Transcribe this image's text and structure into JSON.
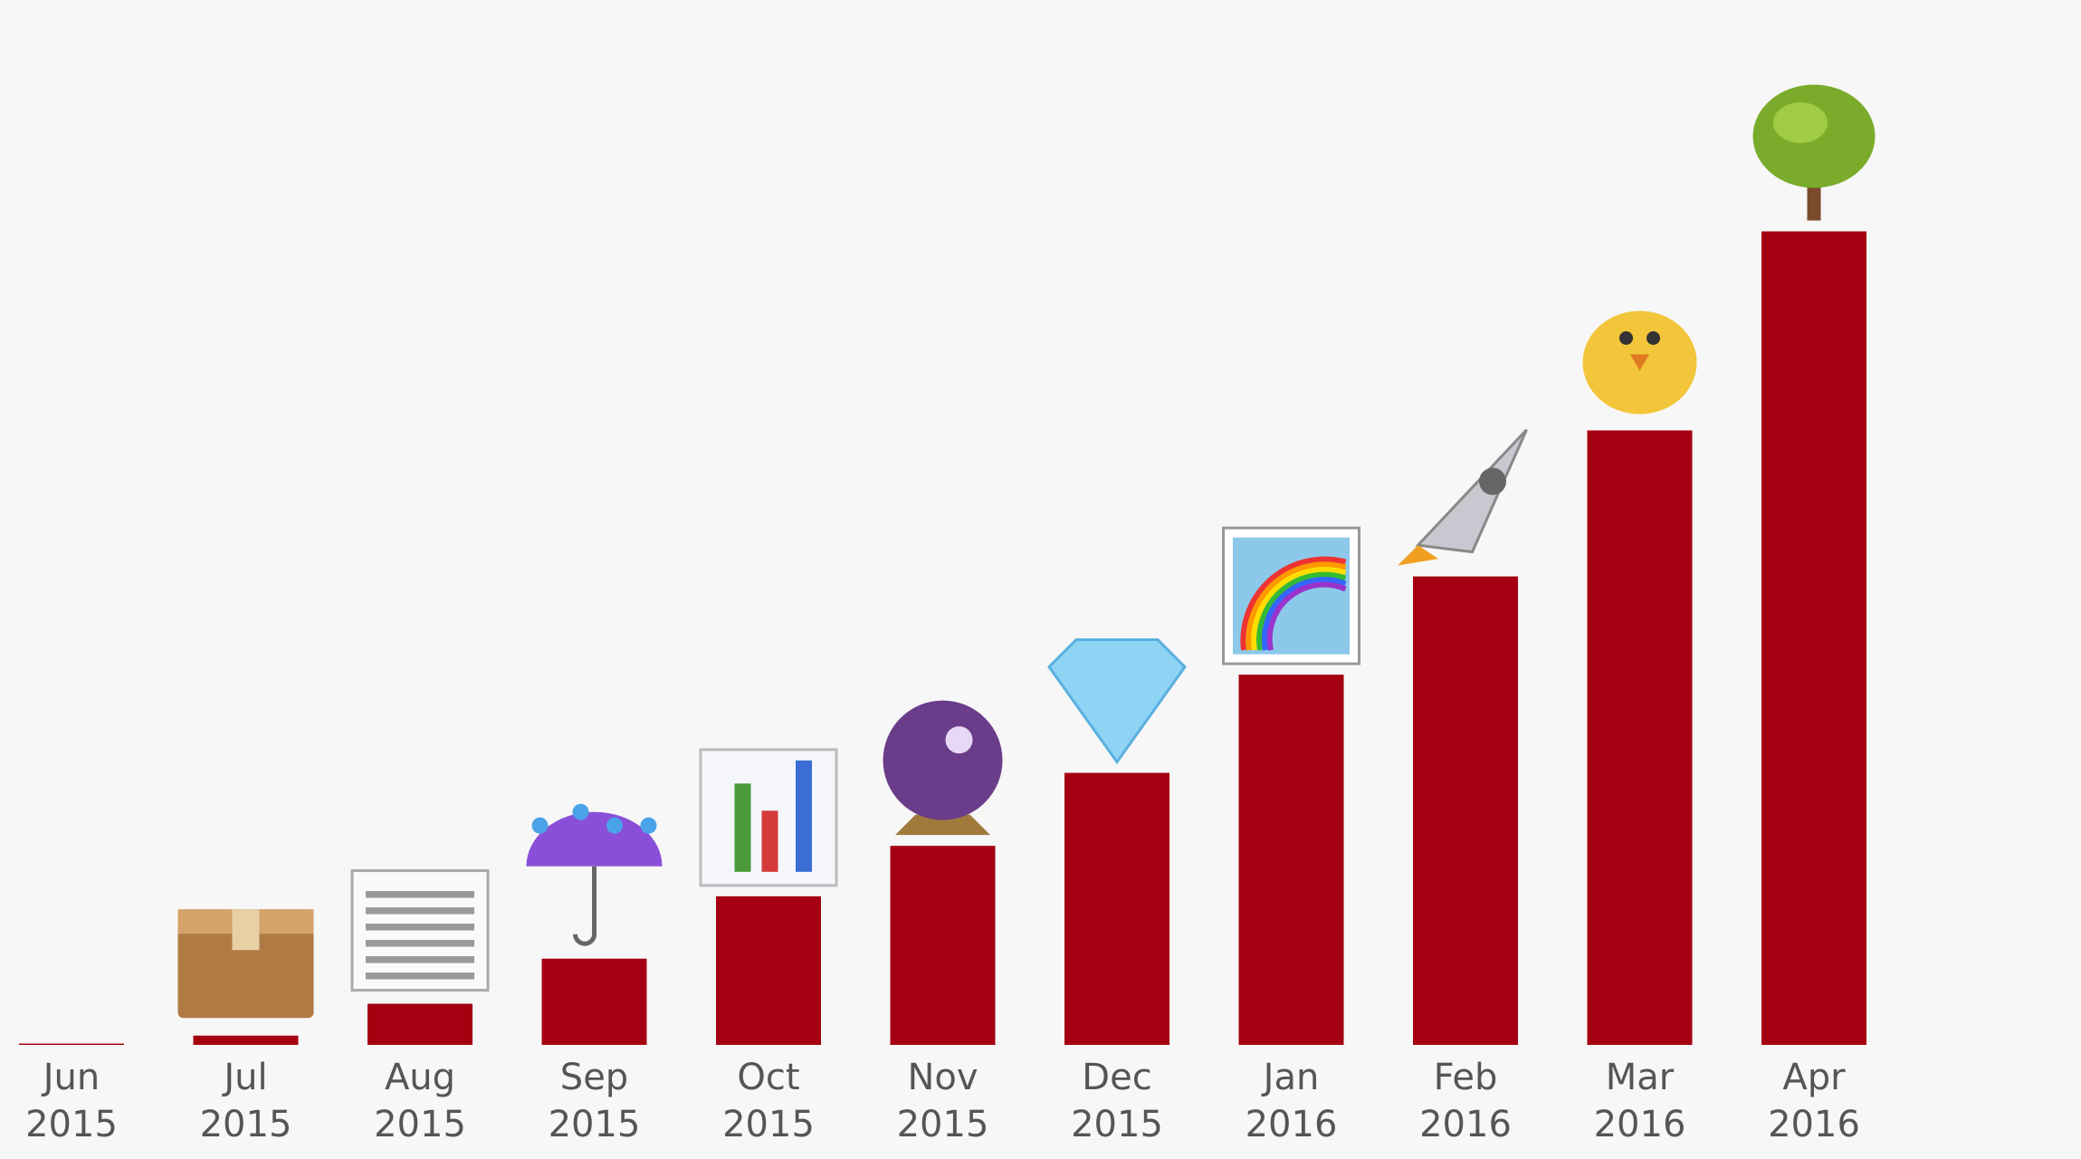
{
  "chart_data": {
    "type": "bar",
    "categories": [
      "Jun 2015",
      "Jul 2015",
      "Aug 2015",
      "Sep 2015",
      "Oct 2015",
      "Nov 2015",
      "Dec 2015",
      "Jan 2016",
      "Feb 2016",
      "Mar 2016",
      "Apr 2016"
    ],
    "values": [
      1,
      7,
      31,
      65,
      112,
      150,
      205,
      279,
      353,
      463,
      613
    ],
    "color": "#a50011",
    "ylim": [
      0,
      700
    ]
  }
}
